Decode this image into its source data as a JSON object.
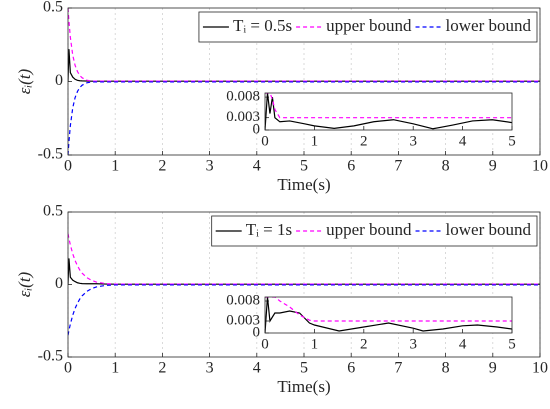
{
  "chart_data": [
    {
      "type": "line",
      "xlabel": "Time(s)",
      "ylabel": "εᵢ(t)",
      "grid": "x",
      "legend": "upper right",
      "xlim": [
        0,
        10
      ],
      "ylim": [
        -0.5,
        0.5
      ],
      "xticks": [
        0,
        1,
        2,
        3,
        4,
        5,
        6,
        7,
        8,
        9,
        10
      ],
      "yticks": [
        -0.5,
        0,
        0.5
      ],
      "x": [
        0,
        0.02,
        0.05,
        0.1,
        0.15,
        0.2,
        0.25,
        0.3,
        0.4,
        0.5,
        0.6,
        0.8,
        1,
        2,
        3,
        4,
        5,
        6,
        7,
        8,
        9,
        10
      ],
      "series": [
        {
          "name": "Tᵢ = 0.5s",
          "color": "#000000",
          "dash": "none",
          "values": [
            0,
            0.22,
            0.06,
            0.03,
            0.015,
            0.008,
            0.005,
            0.004,
            0.003,
            0.002,
            0.002,
            0.002,
            0.002,
            0.002,
            0.002,
            0.002,
            0.002,
            0.002,
            0.002,
            0.002,
            0.002,
            0.002
          ]
        },
        {
          "name": "upper bound",
          "color": "#ff00ff",
          "dash": "4 3",
          "values": [
            0.5,
            0.41,
            0.3,
            0.18,
            0.11,
            0.068,
            0.041,
            0.025,
            0.009,
            0.003,
            0.003,
            0.003,
            0.003,
            0.003,
            0.003,
            0.003,
            0.003,
            0.003,
            0.003,
            0.003,
            0.003,
            0.003
          ]
        },
        {
          "name": "lower bound",
          "color": "#0000ff",
          "dash": "4 3",
          "values": [
            -0.5,
            -0.41,
            -0.3,
            -0.18,
            -0.11,
            -0.068,
            -0.041,
            -0.025,
            -0.009,
            -0.003,
            -0.003,
            -0.003,
            -0.003,
            -0.003,
            -0.003,
            -0.003,
            -0.003,
            -0.003,
            -0.003,
            -0.003,
            -0.003,
            -0.003
          ]
        }
      ]
    },
    {
      "type": "line",
      "grid": "none",
      "xlim": [
        0,
        5
      ],
      "ylim": [
        0,
        0.009
      ],
      "xticks": [
        0,
        1,
        2,
        3,
        4,
        5
      ],
      "yticks": [
        0,
        0.003,
        0.008
      ],
      "x": [
        0,
        0.05,
        0.1,
        0.15,
        0.2,
        0.3,
        0.5,
        0.8,
        1,
        1.4,
        1.8,
        2.2,
        2.6,
        3,
        3.4,
        3.8,
        4.2,
        4.6,
        5
      ],
      "series": [
        {
          "color": "#000000",
          "dash": "none",
          "values": [
            0,
            0.009,
            0.004,
            0.008,
            0.003,
            0.002,
            0.0022,
            0.0015,
            0.001,
            0.0004,
            0.001,
            0.002,
            0.0025,
            0.0015,
            0.0003,
            0.0012,
            0.0022,
            0.0025,
            0.0018
          ]
        },
        {
          "color": "#ff00ff",
          "dash": "4 3",
          "values": [
            0.009,
            0.009,
            0.009,
            0.0075,
            0.005,
            0.003,
            0.003,
            0.003,
            0.003,
            0.003,
            0.003,
            0.003,
            0.003,
            0.003,
            0.003,
            0.003,
            0.003,
            0.003,
            0.003
          ]
        }
      ]
    },
    {
      "type": "line",
      "xlabel": "Time(s)",
      "ylabel": "εᵢ(t)",
      "grid": "x",
      "legend": "upper right",
      "xlim": [
        0,
        10
      ],
      "ylim": [
        -0.5,
        0.5
      ],
      "xticks": [
        0,
        1,
        2,
        3,
        4,
        5,
        6,
        7,
        8,
        9,
        10
      ],
      "yticks": [
        -0.5,
        0,
        0.5
      ],
      "x": [
        0,
        0.02,
        0.05,
        0.1,
        0.15,
        0.2,
        0.25,
        0.3,
        0.4,
        0.5,
        0.6,
        0.8,
        1,
        2,
        3,
        4,
        5,
        6,
        7,
        8,
        9,
        10
      ],
      "series": [
        {
          "name": "Tᵢ = 1s",
          "color": "#000000",
          "dash": "none",
          "values": [
            0,
            0.18,
            0.05,
            0.03,
            0.02,
            0.012,
            0.008,
            0.006,
            0.005,
            0.005,
            0.005,
            0.003,
            0.002,
            0.002,
            0.002,
            0.002,
            0.002,
            0.002,
            0.002,
            0.002,
            0.002,
            0.002
          ]
        },
        {
          "name": "upper bound",
          "color": "#ff00ff",
          "dash": "4 3",
          "values": [
            0.35,
            0.317,
            0.273,
            0.212,
            0.165,
            0.129,
            0.1,
            0.078,
            0.047,
            0.029,
            0.017,
            0.006,
            0.003,
            0.003,
            0.003,
            0.003,
            0.003,
            0.003,
            0.003,
            0.003,
            0.003,
            0.003
          ]
        },
        {
          "name": "lower bound",
          "color": "#0000ff",
          "dash": "4 3",
          "values": [
            -0.35,
            -0.317,
            -0.273,
            -0.212,
            -0.165,
            -0.129,
            -0.1,
            -0.078,
            -0.047,
            -0.029,
            -0.017,
            -0.006,
            -0.003,
            -0.003,
            -0.003,
            -0.003,
            -0.003,
            -0.003,
            -0.003,
            -0.003,
            -0.003,
            -0.003
          ]
        }
      ]
    },
    {
      "type": "line",
      "grid": "none",
      "xlim": [
        0,
        5
      ],
      "ylim": [
        0,
        0.009
      ],
      "xticks": [
        0,
        1,
        2,
        3,
        4,
        5
      ],
      "yticks": [
        0,
        0.003,
        0.008
      ],
      "x": [
        0,
        0.05,
        0.1,
        0.2,
        0.3,
        0.5,
        0.7,
        0.9,
        1,
        1.5,
        2,
        2.5,
        3,
        3.2,
        3.6,
        4,
        4.3,
        4.7,
        5
      ],
      "series": [
        {
          "color": "#000000",
          "dash": "none",
          "values": [
            0,
            0.009,
            0.003,
            0.005,
            0.005,
            0.0055,
            0.005,
            0.0025,
            0.002,
            0.0005,
            0.0015,
            0.0025,
            0.0012,
            0.0005,
            0.001,
            0.0018,
            0.002,
            0.0015,
            0.001
          ]
        },
        {
          "color": "#ff00ff",
          "dash": "4 3",
          "values": [
            0.009,
            0.009,
            0.009,
            0.009,
            0.008,
            0.0065,
            0.0045,
            0.0032,
            0.003,
            0.003,
            0.003,
            0.003,
            0.003,
            0.003,
            0.003,
            0.003,
            0.003,
            0.003,
            0.003
          ]
        }
      ]
    }
  ]
}
